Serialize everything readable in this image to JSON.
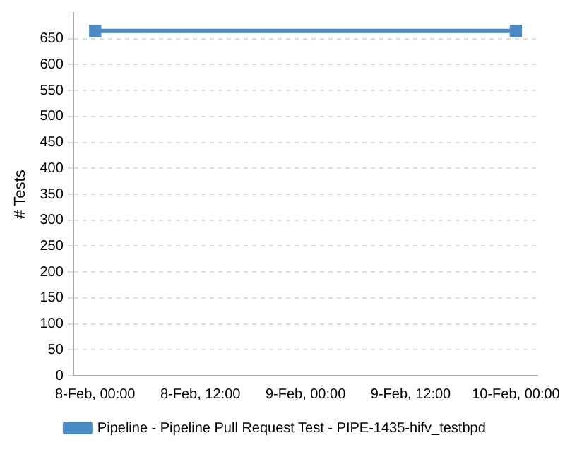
{
  "chart_data": {
    "type": "line",
    "ylabel": "# Tests",
    "x": [
      "--02-08T00:00",
      "--02-10T00:00"
    ],
    "series": [
      {
        "name": "Pipeline - Pipeline Pull Request Test - PIPE-1435-hifv_testbpd",
        "color": "#4a8bc5",
        "values": [
          665,
          665
        ]
      }
    ],
    "xlim": [
      "--02-07T21:30",
      "--02-10T02:30"
    ],
    "xticks": [
      {
        "value": "--02-08T00:00",
        "label": "8-Feb, 00:00"
      },
      {
        "value": "--02-08T12:00",
        "label": "8-Feb, 12:00"
      },
      {
        "value": "--02-09T00:00",
        "label": "9-Feb, 00:00"
      },
      {
        "value": "--02-09T12:00",
        "label": "9-Feb, 12:00"
      },
      {
        "value": "--02-10T00:00",
        "label": "10-Feb, 00:00"
      }
    ],
    "ylim": [
      0,
      700
    ],
    "yticks": [
      0,
      50,
      100,
      150,
      200,
      250,
      300,
      350,
      400,
      450,
      500,
      550,
      600,
      650
    ],
    "grid": "y",
    "legend": "bottom",
    "marker": "square",
    "line_style": "solid"
  }
}
